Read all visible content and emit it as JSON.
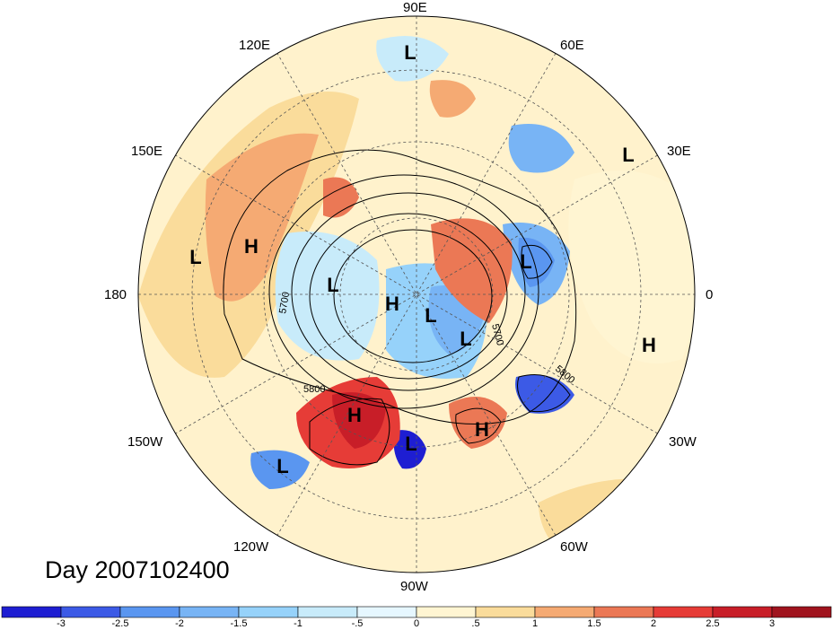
{
  "title": "Day 2007102400",
  "longitude_labels": [
    "90E",
    "60E",
    "30E",
    "0",
    "30W",
    "60W",
    "90W",
    "120W",
    "150W",
    "180",
    "150E",
    "120E"
  ],
  "contour_labels": [
    "5700",
    "5800",
    "5700",
    "5800"
  ],
  "pressure_systems": {
    "highs": [
      "H",
      "H",
      "H",
      "H",
      "H"
    ],
    "lows": [
      "L",
      "L",
      "L",
      "L",
      "L",
      "L",
      "L",
      "L",
      "L"
    ]
  },
  "colorbar": {
    "tick_labels": [
      "-3",
      "-2.5",
      "-2",
      "-1.5",
      "-1",
      "-.5",
      "0",
      ".5",
      "1",
      "1.5",
      "2",
      "2.5",
      "3"
    ],
    "colors": [
      "#1e1ed2",
      "#3c5ae6",
      "#5a96f0",
      "#78b4f5",
      "#96d2fa",
      "#c8ebfa",
      "#e6f7ff",
      "#fff5d2",
      "#fadc9b",
      "#f5aa73",
      "#eb7855",
      "#e63c37",
      "#c81e28",
      "#a0141e"
    ]
  }
}
